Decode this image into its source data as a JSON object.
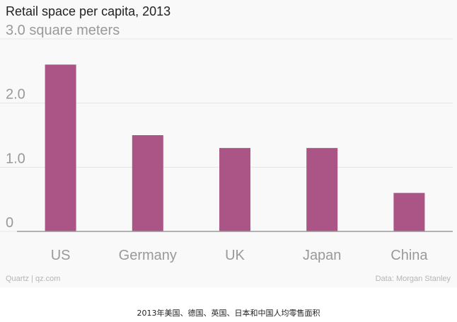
{
  "chart_data": {
    "type": "bar",
    "title": "Retail space per capita, 2013",
    "ylabel": "3.0 square meters",
    "categories": [
      "US",
      "Germany",
      "UK",
      "Japan",
      "China"
    ],
    "values": [
      2.6,
      1.5,
      1.3,
      1.3,
      0.6
    ],
    "ylim": [
      0,
      3.0
    ],
    "yticks": [
      "0",
      "1.0",
      "2.0",
      "3.0 square meters"
    ],
    "ytick_values": [
      0,
      1.0,
      2.0,
      3.0
    ],
    "grid": true,
    "bar_color": "#ab5586",
    "source_left": "Quartz | qz.com",
    "source_right": "Data: Morgan Stanley"
  },
  "caption": "2013年美国、德国、英国、日本和中国人均零售面积"
}
